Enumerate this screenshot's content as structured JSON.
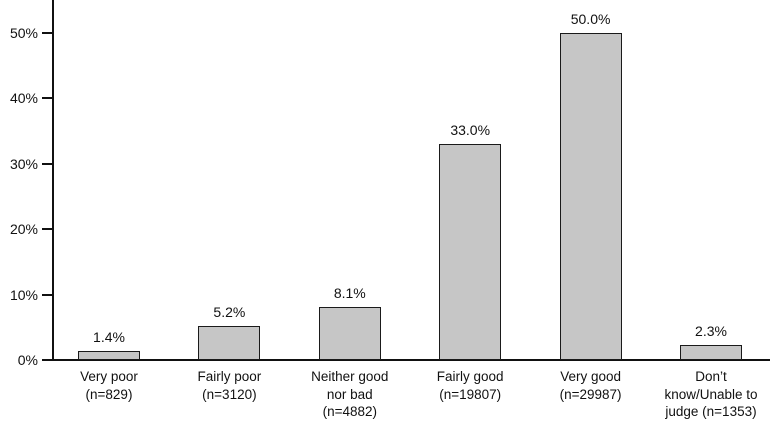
{
  "chart_data": {
    "type": "bar",
    "title": "",
    "xlabel": "",
    "ylabel": "",
    "categories": [
      "Very poor\n(n=829)",
      "Fairly poor\n(n=3120)",
      "Neither good\nnor bad\n(n=4882)",
      "Fairly good\n(n=19807)",
      "Very good\n(n=29987)",
      "Don’t\nknow/Unable to\njudge (n=1353)"
    ],
    "values": [
      1.4,
      5.2,
      8.1,
      33.0,
      50.0,
      2.3
    ],
    "value_labels": [
      "1.4%",
      "5.2%",
      "8.1%",
      "33.0%",
      "50.0%",
      "2.3%"
    ],
    "counts": [
      829,
      3120,
      4882,
      19807,
      29987,
      1353
    ],
    "ylim": [
      0,
      55
    ],
    "yticks": [
      0,
      10,
      20,
      30,
      40,
      50
    ],
    "ytick_labels": [
      "0%",
      "10%",
      "20%",
      "30%",
      "40%",
      "50%"
    ],
    "grid": false,
    "legend": false,
    "bar_fill": "#c6c6c6",
    "bar_border": "#1a1a1a",
    "axis_color": "#111111",
    "text_color": "#111111"
  }
}
